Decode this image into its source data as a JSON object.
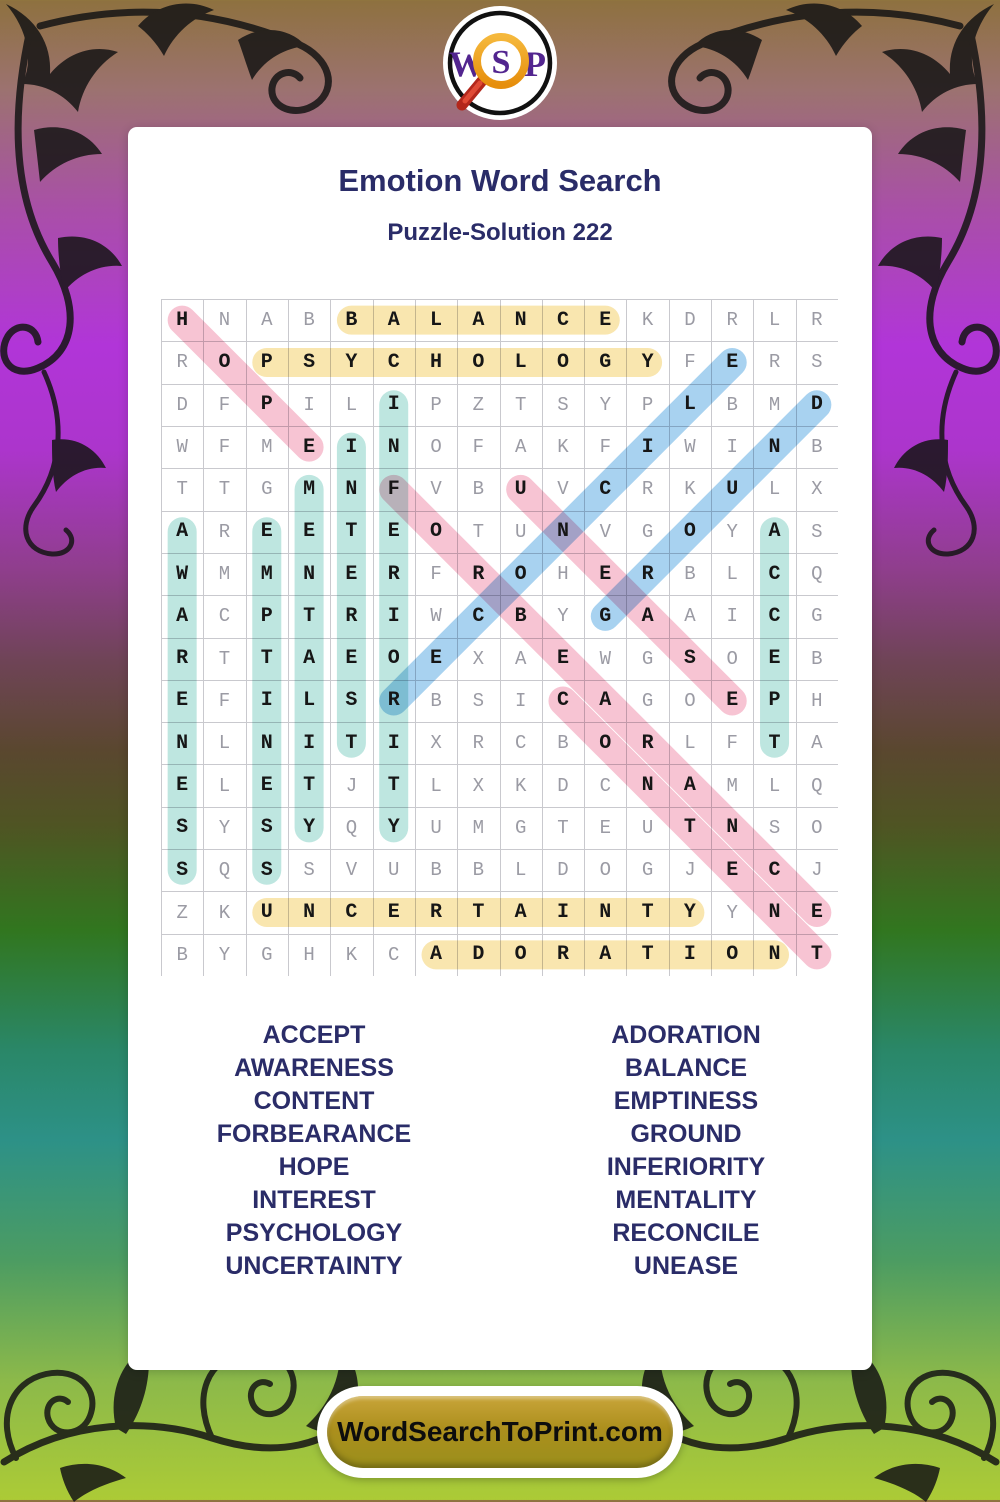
{
  "page": {
    "title": "Emotion Word Search",
    "subtitle": "Puzzle-Solution 222"
  },
  "logo": {
    "w": "W",
    "s": "S",
    "p": "P"
  },
  "grid": {
    "rows": 16,
    "cols": 16,
    "letters": [
      "HNABBALANCEKDRLR",
      "ROPSYCHOLOGYFERS",
      "DFPILIPZTSYPLBMD",
      "WFMEINOFAKFIWINB",
      "TTGMNFVBUVCRKULX",
      "AREETEOTUNVGOYAS",
      "WMMNERFROHERBLCQ",
      "ACPTRIWCBYGAAICG",
      "RTTAEOEXAEWGSOEB",
      "EFILSRBSICAGOEPH",
      "NLNITIXRCBORLFTA",
      "ELETJTLXKDCNAMLQ",
      "SYSYQYUMGTEUTNSO",
      "SQSSVUBBLDOGJECJ",
      "ZKUNCERTAINTYYNE",
      "BYGHKCADORATIONT"
    ],
    "highlights": [
      {
        "word": "BALANCE",
        "color": "yellow",
        "start": [
          0,
          4
        ],
        "end": [
          0,
          10
        ]
      },
      {
        "word": "PSYCHOLOGY",
        "color": "yellow",
        "start": [
          1,
          2
        ],
        "end": [
          1,
          11
        ]
      },
      {
        "word": "UNCERTAINTY",
        "color": "yellow",
        "start": [
          14,
          2
        ],
        "end": [
          14,
          12
        ]
      },
      {
        "word": "ADORATION",
        "color": "yellow",
        "start": [
          15,
          6
        ],
        "end": [
          15,
          14
        ]
      },
      {
        "word": "AWARENESS",
        "color": "teal",
        "start": [
          5,
          0
        ],
        "end": [
          13,
          0
        ]
      },
      {
        "word": "EMPTINESS",
        "color": "teal",
        "start": [
          5,
          2
        ],
        "end": [
          13,
          2
        ]
      },
      {
        "word": "MENTALITY",
        "color": "teal",
        "start": [
          4,
          3
        ],
        "end": [
          12,
          3
        ]
      },
      {
        "word": "INTEREST",
        "color": "teal",
        "start": [
          3,
          4
        ],
        "end": [
          10,
          4
        ]
      },
      {
        "word": "INFERIORITY",
        "color": "teal",
        "start": [
          2,
          5
        ],
        "end": [
          12,
          5
        ]
      },
      {
        "word": "ACCEPT",
        "color": "teal",
        "start": [
          5,
          14
        ],
        "end": [
          10,
          14
        ]
      },
      {
        "word": "HOPE",
        "color": "pink",
        "start": [
          0,
          0
        ],
        "end": [
          3,
          3
        ]
      },
      {
        "word": "FORBEARANCE",
        "color": "pink",
        "start": [
          4,
          5
        ],
        "end": [
          14,
          15
        ]
      },
      {
        "word": "UNEASE",
        "color": "pink",
        "start": [
          4,
          8
        ],
        "end": [
          9,
          13
        ]
      },
      {
        "word": "CONTENT",
        "color": "pink",
        "start": [
          9,
          9
        ],
        "end": [
          15,
          15
        ]
      },
      {
        "word": "RECONCILE",
        "color": "blue",
        "start": [
          9,
          5
        ],
        "end": [
          1,
          13
        ]
      },
      {
        "word": "GROUND",
        "color": "blue",
        "start": [
          7,
          10
        ],
        "end": [
          2,
          15
        ]
      }
    ]
  },
  "colors": {
    "navy": "#2A2C68",
    "yellow": "#F9E6AF",
    "teal": "#BEE6E0",
    "pink": "#F7C4D3",
    "blue": "#A8D2F0",
    "grid_line": "#C9C9CE",
    "letter_gray": "#9B9BA4",
    "letter_black": "#161616",
    "logo_purple": "#52258F",
    "button_gold": "#AC8F1D"
  },
  "word_list": {
    "left": [
      "ACCEPT",
      "AWARENESS",
      "CONTENT",
      "FORBEARANCE",
      "HOPE",
      "INTEREST",
      "PSYCHOLOGY",
      "UNCERTAINTY"
    ],
    "right": [
      "ADORATION",
      "BALANCE",
      "EMPTINESS",
      "GROUND",
      "INFERIORITY",
      "MENTALITY",
      "RECONCILE",
      "UNEASE"
    ]
  },
  "footer": {
    "site": "WordSearchToPrint.com"
  }
}
